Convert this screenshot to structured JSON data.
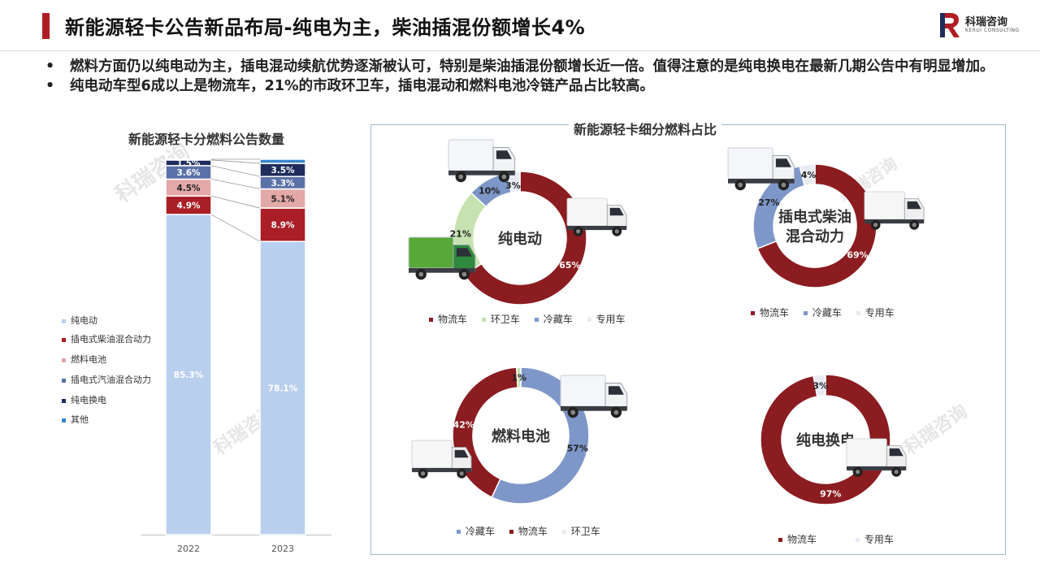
{
  "header": {
    "title": "新能源轻卡公告新品布局-纯电为主，柴油插混份额增长4%",
    "logo_name": "科瑞咨询",
    "logo_sub": "KERUI CONSULTING"
  },
  "bullets": [
    "•",
    "燃料方面仍以纯电动为主，插电混动续航优势逐渐被认可，特别是柴油插混份额增长近一倍。值得注意的是纯电换电在最新几期公告中有明显增加。",
    "纯电动车型6成以上是物流车，21%的市政环卫车，插电混动和燃料电池冷链产品占比较高。"
  ],
  "panel_title": "新能源轻卡细分燃料占比",
  "colors": {
    "brand": "#b01e23",
    "bev": "#b9cfee",
    "diesel_phev": "#aa1e26",
    "fcev": "#e3a8a8",
    "gas_phev": "#5b72a8",
    "swap": "#1f2d5c",
    "other": "#3a86cf",
    "logistics": "#8b1c20",
    "sanitation": "#c6e2b0",
    "cold_chain": "#7e97c9",
    "special": "#e8ebf2"
  },
  "chart_data": [
    {
      "type": "bar",
      "stacked": true,
      "title": "新能源轻卡分燃料公告数量",
      "categories": [
        "2022",
        "2023"
      ],
      "ylim": [
        0,
        100
      ],
      "series": [
        {
          "name": "纯电动",
          "values": [
            85.3,
            78.1
          ],
          "labels": [
            "85.3%",
            "78.1%"
          ]
        },
        {
          "name": "插电式柴油混合动力",
          "values": [
            4.9,
            8.9
          ],
          "labels": [
            "4.9%",
            "8.9%"
          ]
        },
        {
          "name": "燃料电池",
          "values": [
            4.5,
            5.1
          ],
          "labels": [
            "4.5%",
            "5.1%"
          ]
        },
        {
          "name": "插电式汽油混合动力",
          "values": [
            3.6,
            3.3
          ],
          "labels": [
            "3.6%",
            "3.3%"
          ]
        },
        {
          "name": "纯电换电",
          "values": [
            1.5,
            3.5
          ],
          "labels": [
            "1.5%",
            "3.5%"
          ]
        },
        {
          "name": "其他",
          "values": [
            0.2,
            1.1
          ],
          "labels": [
            "",
            ""
          ]
        }
      ],
      "legend": "left",
      "grid": false
    },
    {
      "type": "pie",
      "donut": true,
      "center_label": "纯电动",
      "slices": [
        {
          "name": "物流车",
          "value": 65,
          "label": "65%"
        },
        {
          "name": "环卫车",
          "value": 21,
          "label": "21%"
        },
        {
          "name": "冷藏车",
          "value": 10,
          "label": "10%"
        },
        {
          "name": "专用车",
          "value": 3,
          "label": "3%"
        }
      ]
    },
    {
      "type": "pie",
      "donut": true,
      "center_label": "插电式柴油混合动力",
      "slices": [
        {
          "name": "物流车",
          "value": 69,
          "label": "69%"
        },
        {
          "name": "冷藏车",
          "value": 27,
          "label": "27%"
        },
        {
          "name": "专用车",
          "value": 4,
          "label": "4%"
        }
      ]
    },
    {
      "type": "pie",
      "donut": true,
      "center_label": "燃料电池",
      "slices": [
        {
          "name": "冷藏车",
          "value": 57,
          "label": "57%"
        },
        {
          "name": "物流车",
          "value": 42,
          "label": "42%"
        },
        {
          "name": "环卫车",
          "value": 1,
          "label": "1%"
        }
      ]
    },
    {
      "type": "pie",
      "donut": true,
      "center_label": "纯电换电",
      "slices": [
        {
          "name": "物流车",
          "value": 97,
          "label": "97%"
        },
        {
          "name": "专用车",
          "value": 3,
          "label": "3%"
        }
      ]
    }
  ],
  "donut_center_lines": {
    "bev": [
      "纯电动"
    ],
    "phev": [
      "插电式柴油",
      "混合动力"
    ],
    "fcev": [
      "燃料电池"
    ],
    "swap": [
      "纯电换电"
    ]
  },
  "donut_legends": {
    "bev": [
      "物流车",
      "环卫车",
      "冷藏车",
      "专用车"
    ],
    "phev": [
      "物流车",
      "冷藏车",
      "专用车"
    ],
    "fcev": [
      "冷藏车",
      "物流车",
      "环卫车"
    ],
    "swap": [
      "物流车",
      "专用车"
    ]
  },
  "watermark": "科瑞咨询"
}
